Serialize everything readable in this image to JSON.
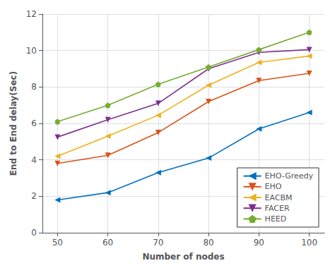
{
  "chart_data": {
    "type": "line",
    "xlabel": "Number of nodes",
    "ylabel": "End to End delay(Sec)",
    "x": [
      50,
      60,
      70,
      80,
      90,
      100
    ],
    "series": [
      {
        "name": "EHO-Greedy",
        "color": "#0070C0",
        "marker": "triangle-left",
        "values": [
          1.8,
          2.2,
          3.3,
          4.1,
          5.7,
          6.6
        ]
      },
      {
        "name": "EHO",
        "color": "#D95319",
        "marker": "triangle-down",
        "values": [
          3.8,
          4.25,
          5.5,
          7.2,
          8.35,
          8.75
        ]
      },
      {
        "name": "EACBM",
        "color": "#EDB120",
        "marker": "triangle-left",
        "values": [
          4.2,
          5.3,
          6.45,
          8.1,
          9.35,
          9.7
        ]
      },
      {
        "name": "FACER",
        "color": "#7E2F8E",
        "marker": "triangle-down",
        "values": [
          5.25,
          6.2,
          7.1,
          9.0,
          9.9,
          10.05
        ]
      },
      {
        "name": "HEED",
        "color": "#77AC30",
        "marker": "pentagon",
        "values": [
          6.1,
          7.0,
          8.15,
          9.1,
          10.05,
          11.0
        ]
      }
    ],
    "xlim": [
      47,
      103
    ],
    "xticks": [
      50,
      60,
      70,
      80,
      90,
      100
    ],
    "ylim": [
      0,
      12
    ],
    "yticks": [
      0,
      2,
      4,
      6,
      8,
      10,
      12
    ],
    "grid": true,
    "legend": "lower right"
  }
}
